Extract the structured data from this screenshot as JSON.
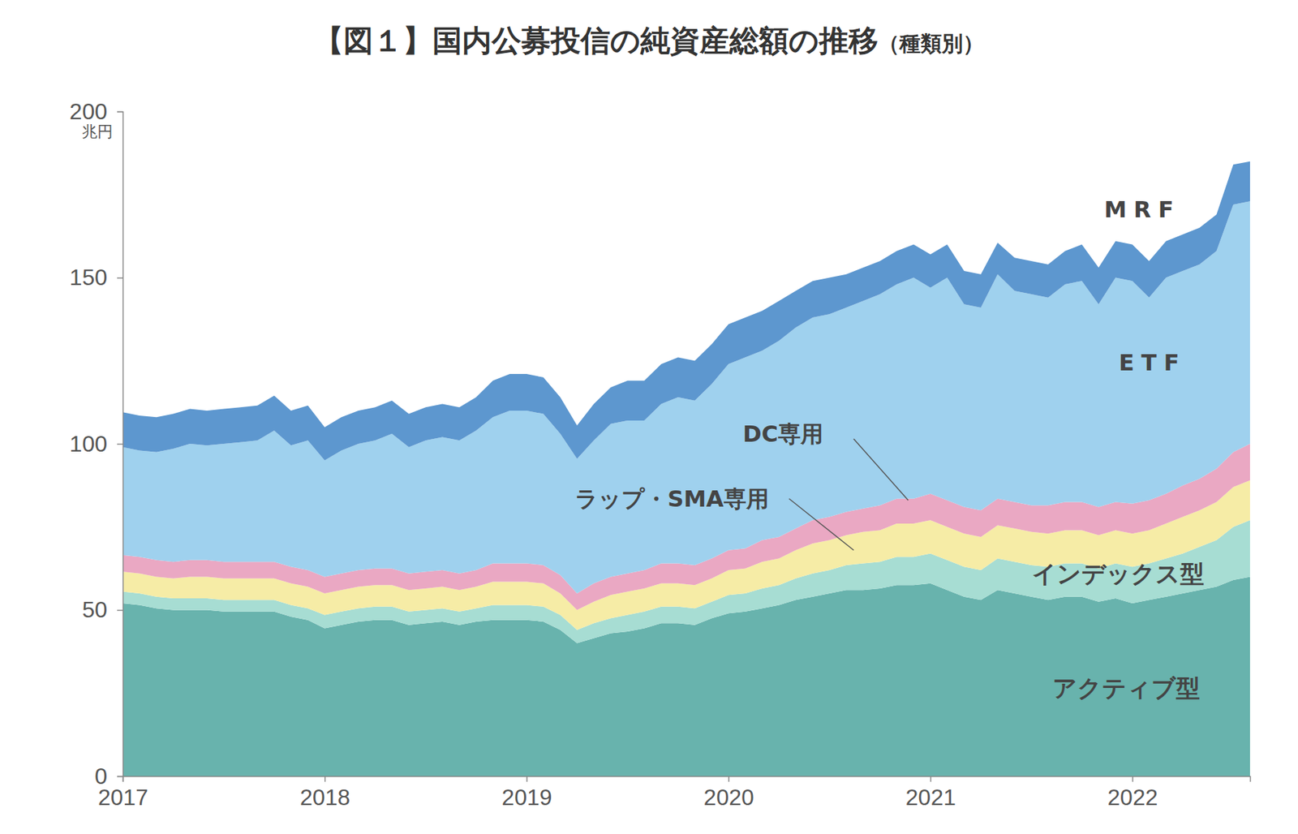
{
  "chart_data": {
    "type": "area",
    "stacked": true,
    "title": "【図１】国内公募投信の純資産総額の推移",
    "subtitle": "（種類別）",
    "y_label": "兆円",
    "xlim": [
      2017,
      2022.583
    ],
    "xticks": [
      2017,
      2018,
      2019,
      2020,
      2021,
      2022
    ],
    "ylim": [
      0,
      200
    ],
    "yticks": [
      0,
      50,
      100,
      150,
      200
    ],
    "grid": false,
    "x": [
      2017,
      2017.083,
      2017.167,
      2017.25,
      2017.333,
      2017.417,
      2017.5,
      2017.583,
      2017.667,
      2017.75,
      2017.833,
      2017.917,
      2018,
      2018.083,
      2018.167,
      2018.25,
      2018.333,
      2018.417,
      2018.5,
      2018.583,
      2018.667,
      2018.75,
      2018.833,
      2018.917,
      2019,
      2019.083,
      2019.167,
      2019.25,
      2019.333,
      2019.417,
      2019.5,
      2019.583,
      2019.667,
      2019.75,
      2019.833,
      2019.917,
      2020,
      2020.083,
      2020.167,
      2020.25,
      2020.333,
      2020.417,
      2020.5,
      2020.583,
      2020.667,
      2020.75,
      2020.833,
      2020.917,
      2021,
      2021.083,
      2021.167,
      2021.25,
      2021.333,
      2021.417,
      2021.5,
      2021.583,
      2021.667,
      2021.75,
      2021.833,
      2021.917,
      2022,
      2022.083,
      2022.167,
      2022.25,
      2022.333,
      2022.417,
      2022.5,
      2022.583
    ],
    "series": [
      {
        "name": "アクティブ型",
        "color": "#68b3ad",
        "values": [
          52,
          51.5,
          50.5,
          50,
          50,
          50,
          49.5,
          49.5,
          49.5,
          49.5,
          48,
          47,
          44.5,
          45.5,
          46.5,
          47,
          47,
          45.5,
          46,
          46.5,
          45.5,
          46.5,
          47,
          47,
          47,
          46.5,
          44,
          40,
          41.5,
          43,
          43.5,
          44.5,
          46,
          46,
          45.5,
          47.5,
          49,
          49.5,
          50.5,
          51.5,
          53,
          54,
          55,
          56,
          56,
          56.5,
          57.5,
          57.5,
          58,
          56,
          54,
          53,
          56,
          55,
          54,
          53,
          54,
          54,
          52.5,
          53.5,
          52,
          53,
          54,
          55,
          56,
          57,
          59,
          60
        ]
      },
      {
        "name": "インデックス型",
        "color": "#a7ddd3",
        "values": [
          3.5,
          3.5,
          3.5,
          3.5,
          3.5,
          3.5,
          3.5,
          3.5,
          3.5,
          3.5,
          3.5,
          3.5,
          4,
          4,
          4,
          4,
          4,
          4,
          4,
          4,
          4,
          4,
          4.5,
          4.5,
          4.5,
          4.5,
          4.5,
          4,
          4.5,
          4.5,
          5,
          5,
          5,
          5,
          5,
          5,
          5.5,
          5.5,
          6,
          6,
          6.5,
          7,
          7,
          7.5,
          8,
          8,
          8.5,
          8.5,
          9,
          9,
          9,
          9,
          9.5,
          9.5,
          9.5,
          10,
          10,
          10,
          10,
          10.5,
          11,
          11,
          11.5,
          12,
          13,
          14,
          16,
          17
        ]
      },
      {
        "name": "ラップ・SMA専用",
        "color": "#f6eca6",
        "values": [
          6,
          6,
          6,
          6,
          6.5,
          6.5,
          6.5,
          6.5,
          6.5,
          6.5,
          6.5,
          6.5,
          6.5,
          6.5,
          6.5,
          6.5,
          6.5,
          6.5,
          6.5,
          6.5,
          6.5,
          6.5,
          7,
          7,
          7,
          7,
          6.5,
          6,
          6.5,
          7,
          7,
          7,
          7,
          7,
          7,
          7,
          7.5,
          7.5,
          8,
          8,
          8.5,
          9,
          9,
          9,
          9.5,
          9.5,
          10,
          10,
          10,
          10,
          10,
          10,
          10,
          10,
          10,
          10,
          10,
          10,
          10,
          10,
          10,
          10,
          10.5,
          11,
          11,
          11.5,
          12,
          12
        ]
      },
      {
        "name": "DC専用",
        "color": "#eaa8c3",
        "values": [
          5,
          5,
          5,
          5,
          5,
          5,
          5,
          5,
          5,
          5,
          5,
          5,
          5,
          5,
          5,
          5,
          5,
          5,
          5,
          5,
          5,
          5,
          5.5,
          5.5,
          5.5,
          5.5,
          5.5,
          5,
          5.5,
          5.5,
          5.5,
          5.5,
          6,
          6,
          6,
          6,
          6,
          6,
          6.5,
          6.5,
          6.5,
          7,
          7,
          7,
          7,
          7.5,
          7.5,
          7.5,
          8,
          8,
          8,
          8,
          8,
          8,
          8,
          8.5,
          8.5,
          8.5,
          8.5,
          8.5,
          9,
          9,
          9,
          9.5,
          9.5,
          10,
          10.5,
          11
        ]
      },
      {
        "name": "ETF",
        "color": "#9fd1ee",
        "values": [
          32.5,
          32,
          32.5,
          34,
          35,
          34.5,
          35.5,
          36,
          36.5,
          39.5,
          36.5,
          39,
          35,
          37,
          38,
          38.5,
          40.5,
          38,
          39.5,
          40,
          40,
          42,
          44,
          46,
          46,
          45.5,
          42.5,
          40.5,
          43,
          46,
          46,
          45,
          48,
          50,
          49.5,
          52.5,
          56,
          57.5,
          57,
          59,
          60.5,
          61,
          61,
          61.5,
          62.5,
          63.5,
          64.5,
          66.5,
          62,
          67,
          61,
          61,
          67.5,
          63.5,
          63.5,
          62.5,
          65.5,
          66.5,
          61,
          67.5,
          67,
          61,
          65,
          64.5,
          64.5,
          65.5,
          74.5,
          73
        ]
      },
      {
        "name": "MRF",
        "color": "#5d97cf",
        "values": [
          10.5,
          10.5,
          10.5,
          10.5,
          10.5,
          10.5,
          10.5,
          10.5,
          10.5,
          10.5,
          10.5,
          10.5,
          10,
          10,
          10,
          10,
          10,
          10,
          10,
          10,
          10,
          10,
          11,
          11,
          11,
          11,
          11,
          10,
          11,
          11,
          12,
          12,
          12,
          12,
          12,
          12,
          12,
          12,
          12,
          12,
          11,
          11,
          11,
          10,
          10,
          10,
          10,
          10,
          10,
          10,
          10,
          10,
          9.5,
          10,
          10,
          10,
          10,
          11,
          11,
          11,
          11,
          11,
          11,
          11,
          11,
          11,
          12,
          12
        ]
      }
    ]
  }
}
